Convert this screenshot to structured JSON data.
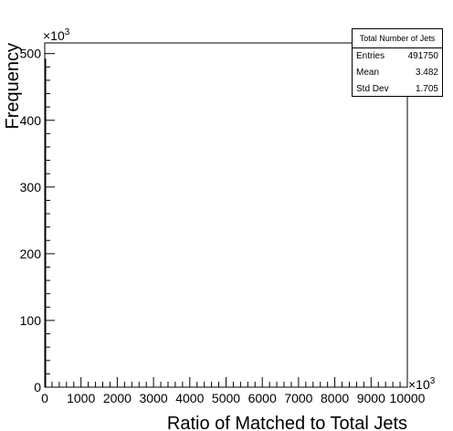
{
  "chart_data": {
    "type": "bar",
    "title": "",
    "xlabel": "Ratio of Matched to Total Jets",
    "ylabel": "Frequency",
    "x_exponent_label": "×10",
    "x_exponent_power": "3",
    "y_exponent_label": "×10",
    "y_exponent_power": "3",
    "xlim": [
      0,
      10000
    ],
    "ylim": [
      0,
      516
    ],
    "x_ticks": [
      0,
      1000,
      2000,
      3000,
      4000,
      5000,
      6000,
      7000,
      8000,
      9000,
      10000
    ],
    "x_tick_labels": [
      "0",
      "1000",
      "2000",
      "3000",
      "4000",
      "5000",
      "6000",
      "7000",
      "8000",
      "9000",
      "10000"
    ],
    "y_ticks": [
      0,
      100,
      200,
      300,
      400,
      500
    ],
    "y_tick_labels": [
      "0",
      "100",
      "200",
      "300",
      "400",
      "500"
    ],
    "series": [
      {
        "name": "Total Number of Jets",
        "bins": [
          [
            0,
            10,
            491.75
          ]
        ]
      }
    ]
  },
  "stats": {
    "title": "Total Number of Jets",
    "entries_label": "Entries",
    "entries_value": "491750",
    "mean_label": "Mean",
    "mean_value": "3.482",
    "stddev_label": "Std Dev",
    "stddev_value": "1.705"
  }
}
